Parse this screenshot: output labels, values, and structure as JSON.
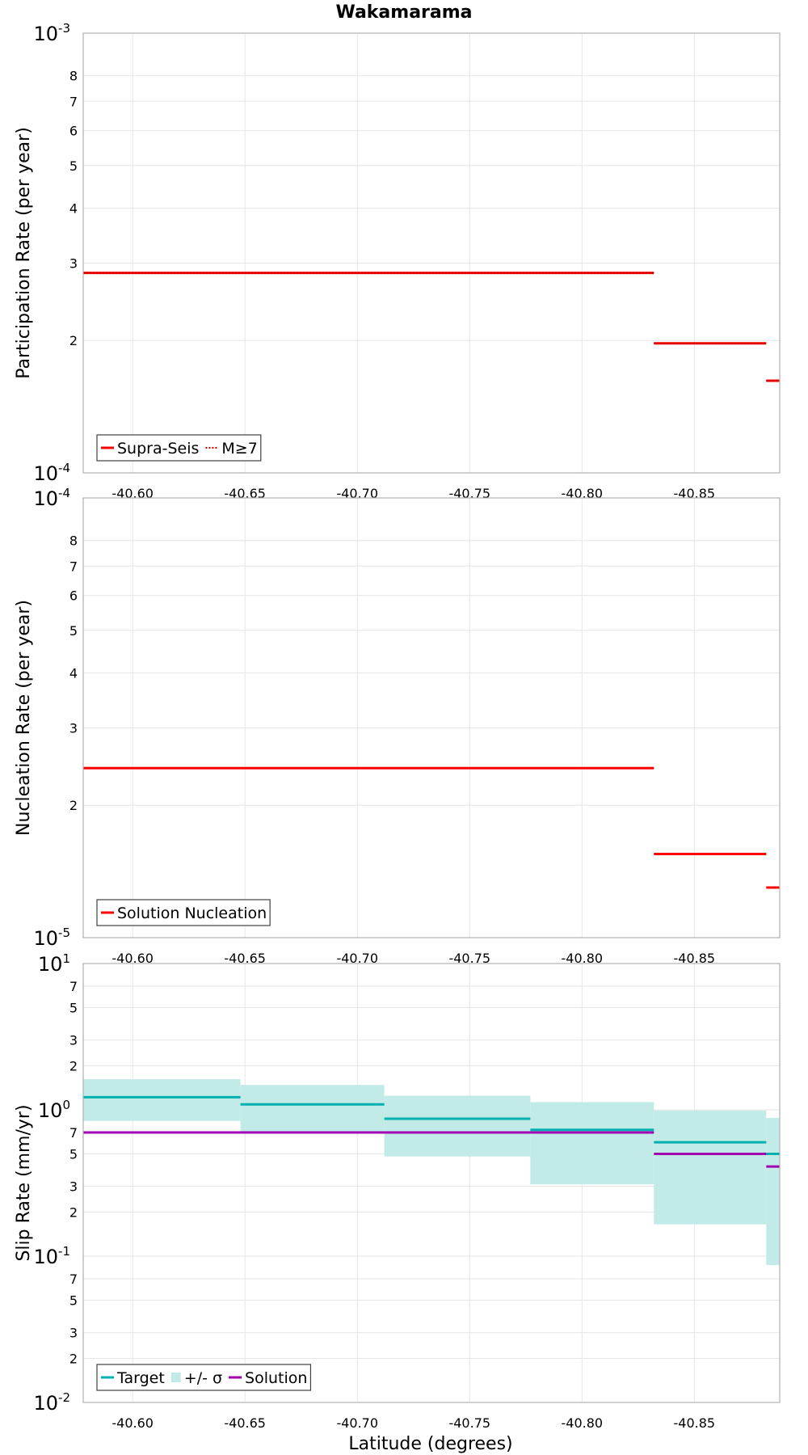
{
  "title": "Wakamarama",
  "xlabel": "Latitude (degrees)",
  "colors": {
    "red": "#ff0000",
    "target": "#00b0b0",
    "band": "#c2ebe8",
    "solution": "#a000b0",
    "grid": "#e6e6e6",
    "frame": "#b0b0b0"
  },
  "chart_data": [
    {
      "type": "line",
      "scale": "log",
      "ylabel": "Participation Rate (per year)",
      "xlim": [
        -40.578,
        -40.888
      ],
      "ylim": [
        0.0001,
        0.001
      ],
      "x_ticks": [
        "-40.60",
        "-40.65",
        "-40.70",
        "-40.75",
        "-40.80",
        "-40.85"
      ],
      "y_major_ticks": [
        {
          "base": "10",
          "exp": "-4"
        },
        {
          "base": "10",
          "exp": "-3"
        }
      ],
      "y_minor_ticks": [
        "2",
        "3",
        "4",
        "5",
        "6",
        "7",
        "8"
      ],
      "grid": true,
      "legend_position": "bottom-left",
      "legend": [
        {
          "label": "Supra-Seis",
          "style": "solid"
        },
        {
          "label": "M≥7",
          "style": "dotted"
        }
      ],
      "series": [
        {
          "name": "Supra-Seis",
          "style": "solid",
          "color": "#ff0000",
          "steps": [
            [
              -40.578,
              -40.832,
              0.000285
            ],
            [
              -40.832,
              -40.882,
              0.000197
            ],
            [
              -40.882,
              -40.888,
              0.000162
            ]
          ]
        },
        {
          "name": "M≥7",
          "style": "dotted",
          "color": "#ff0000",
          "steps": [
            [
              -40.578,
              -40.832,
              0.000285
            ],
            [
              -40.832,
              -40.882,
              0.000197
            ],
            [
              -40.882,
              -40.888,
              0.000162
            ]
          ]
        }
      ]
    },
    {
      "type": "line",
      "scale": "log",
      "ylabel": "Nucleation Rate (per year)",
      "xlim": [
        -40.578,
        -40.888
      ],
      "ylim": [
        1e-05,
        0.0001
      ],
      "x_ticks": [
        "-40.60",
        "-40.65",
        "-40.70",
        "-40.75",
        "-40.80",
        "-40.85"
      ],
      "y_major_ticks": [
        {
          "base": "10",
          "exp": "-5"
        },
        {
          "base": "10",
          "exp": "-4"
        }
      ],
      "y_minor_ticks": [
        "2",
        "3",
        "4",
        "5",
        "6",
        "7",
        "8"
      ],
      "grid": true,
      "legend_position": "bottom-left",
      "legend": [
        {
          "label": "Solution Nucleation",
          "style": "solid"
        }
      ],
      "series": [
        {
          "name": "Solution Nucleation",
          "style": "solid",
          "color": "#ff0000",
          "steps": [
            [
              -40.578,
              -40.832,
              2.43e-05
            ],
            [
              -40.832,
              -40.882,
              1.55e-05
            ],
            [
              -40.882,
              -40.888,
              1.3e-05
            ]
          ]
        }
      ]
    },
    {
      "type": "line",
      "scale": "log",
      "ylabel": "Slip Rate (mm/yr)",
      "xlim": [
        -40.578,
        -40.888
      ],
      "ylim": [
        0.01,
        10
      ],
      "x_ticks": [
        "-40.60",
        "-40.65",
        "-40.70",
        "-40.75",
        "-40.80",
        "-40.85"
      ],
      "y_major_ticks": [
        {
          "base": "10",
          "exp": "-2"
        },
        {
          "base": "10",
          "exp": "-1"
        },
        {
          "base": "10",
          "exp": "0"
        },
        {
          "base": "10",
          "exp": "1"
        }
      ],
      "y_minor_ticks": [
        "2",
        "3",
        "5",
        "7"
      ],
      "grid": true,
      "legend_position": "bottom-left",
      "legend": [
        {
          "label": "Target",
          "style": "solid"
        },
        {
          "label": "+/- σ",
          "style": "band"
        },
        {
          "label": "Solution",
          "style": "solid"
        }
      ],
      "band": {
        "name": "+/- σ",
        "steps": [
          [
            -40.578,
            -40.648,
            0.84,
            1.62
          ],
          [
            -40.648,
            -40.712,
            0.7,
            1.48
          ],
          [
            -40.712,
            -40.777,
            0.48,
            1.25
          ],
          [
            -40.777,
            -40.832,
            0.31,
            1.13
          ],
          [
            -40.832,
            -40.882,
            0.165,
            0.99
          ],
          [
            -40.882,
            -40.888,
            0.087,
            0.88
          ]
        ]
      },
      "series": [
        {
          "name": "Target",
          "style": "solid",
          "color": "#00b0b0",
          "steps": [
            [
              -40.578,
              -40.648,
              1.22
            ],
            [
              -40.648,
              -40.712,
              1.09
            ],
            [
              -40.712,
              -40.777,
              0.87
            ],
            [
              -40.777,
              -40.832,
              0.73
            ],
            [
              -40.832,
              -40.882,
              0.6
            ],
            [
              -40.882,
              -40.888,
              0.5
            ]
          ]
        },
        {
          "name": "Solution",
          "style": "solid",
          "color": "#a000b0",
          "steps": [
            [
              -40.578,
              -40.832,
              0.7
            ],
            [
              -40.832,
              -40.882,
              0.5
            ],
            [
              -40.882,
              -40.888,
              0.41
            ]
          ]
        }
      ]
    }
  ]
}
